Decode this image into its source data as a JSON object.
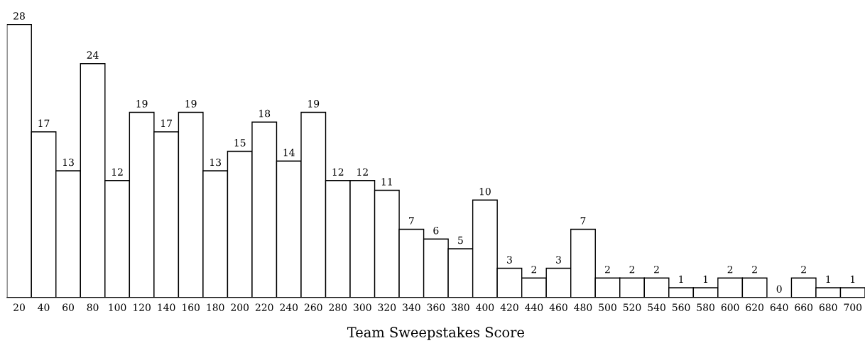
{
  "chart_data": {
    "type": "bar",
    "xlabel": "Team Sweepstakes Score",
    "categories": [
      "20",
      "40",
      "60",
      "80",
      "100",
      "120",
      "140",
      "160",
      "180",
      "200",
      "220",
      "240",
      "260",
      "280",
      "300",
      "320",
      "340",
      "360",
      "380",
      "400",
      "420",
      "440",
      "460",
      "480",
      "500",
      "520",
      "540",
      "560",
      "580",
      "600",
      "620",
      "640",
      "660",
      "680",
      "700"
    ],
    "values": [
      28,
      17,
      13,
      24,
      12,
      19,
      17,
      19,
      13,
      15,
      18,
      14,
      19,
      12,
      12,
      11,
      7,
      6,
      5,
      10,
      3,
      2,
      3,
      7,
      2,
      2,
      2,
      1,
      1,
      2,
      2,
      0,
      2,
      1,
      1
    ],
    "color": "#ffffff",
    "data_labels": true,
    "tick_labels": "x",
    "grid": false,
    "legend": false
  }
}
